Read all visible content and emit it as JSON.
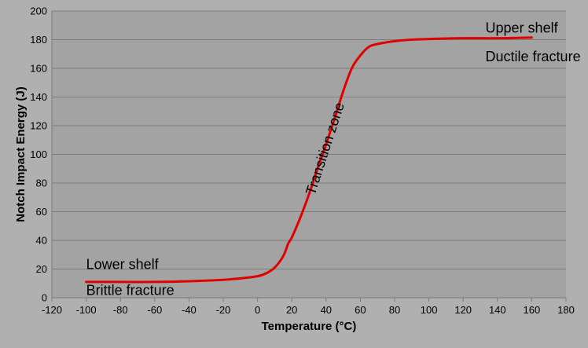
{
  "chart_data": {
    "type": "line",
    "title": "",
    "xlabel": "Temperature (°C)",
    "ylabel": "Notch Impact Energy (J)",
    "xlim": [
      -120,
      180
    ],
    "ylim": [
      0,
      200
    ],
    "x_ticks": [
      -120,
      -100,
      -80,
      -60,
      -40,
      -20,
      0,
      20,
      40,
      60,
      80,
      100,
      120,
      140,
      160,
      180
    ],
    "y_ticks": [
      0,
      20,
      40,
      60,
      80,
      100,
      120,
      140,
      160,
      180,
      200
    ],
    "grid": true,
    "legend": "none",
    "series": [
      {
        "color": "#e00000",
        "points": [
          [
            -100,
            11
          ],
          [
            -80,
            11
          ],
          [
            -60,
            11
          ],
          [
            -40,
            11.5
          ],
          [
            -20,
            12.5
          ],
          [
            -10,
            13.5
          ],
          [
            0,
            15
          ],
          [
            5,
            17
          ],
          [
            10,
            21
          ],
          [
            15,
            29
          ],
          [
            18,
            38
          ],
          [
            20,
            42
          ],
          [
            25,
            56
          ],
          [
            30,
            72
          ],
          [
            35,
            90
          ],
          [
            40,
            107
          ],
          [
            45,
            125
          ],
          [
            50,
            144
          ],
          [
            55,
            160
          ],
          [
            60,
            169
          ],
          [
            65,
            175
          ],
          [
            70,
            177
          ],
          [
            80,
            179
          ],
          [
            90,
            180
          ],
          [
            100,
            180.5
          ],
          [
            120,
            181
          ],
          [
            140,
            181
          ],
          [
            160,
            181.5
          ]
        ]
      }
    ],
    "annotations": [
      {
        "text": "Upper shelf",
        "x": 133,
        "y": 185
      },
      {
        "text": "Ductile fracture",
        "x": 133,
        "y": 165
      },
      {
        "text": "Lower shelf",
        "x": -100,
        "y": 20
      },
      {
        "text": "Brittle fracture",
        "x": -100,
        "y": 2
      },
      {
        "text": "Transition zone",
        "x": 42,
        "y": 103,
        "rotation": -72
      }
    ]
  }
}
